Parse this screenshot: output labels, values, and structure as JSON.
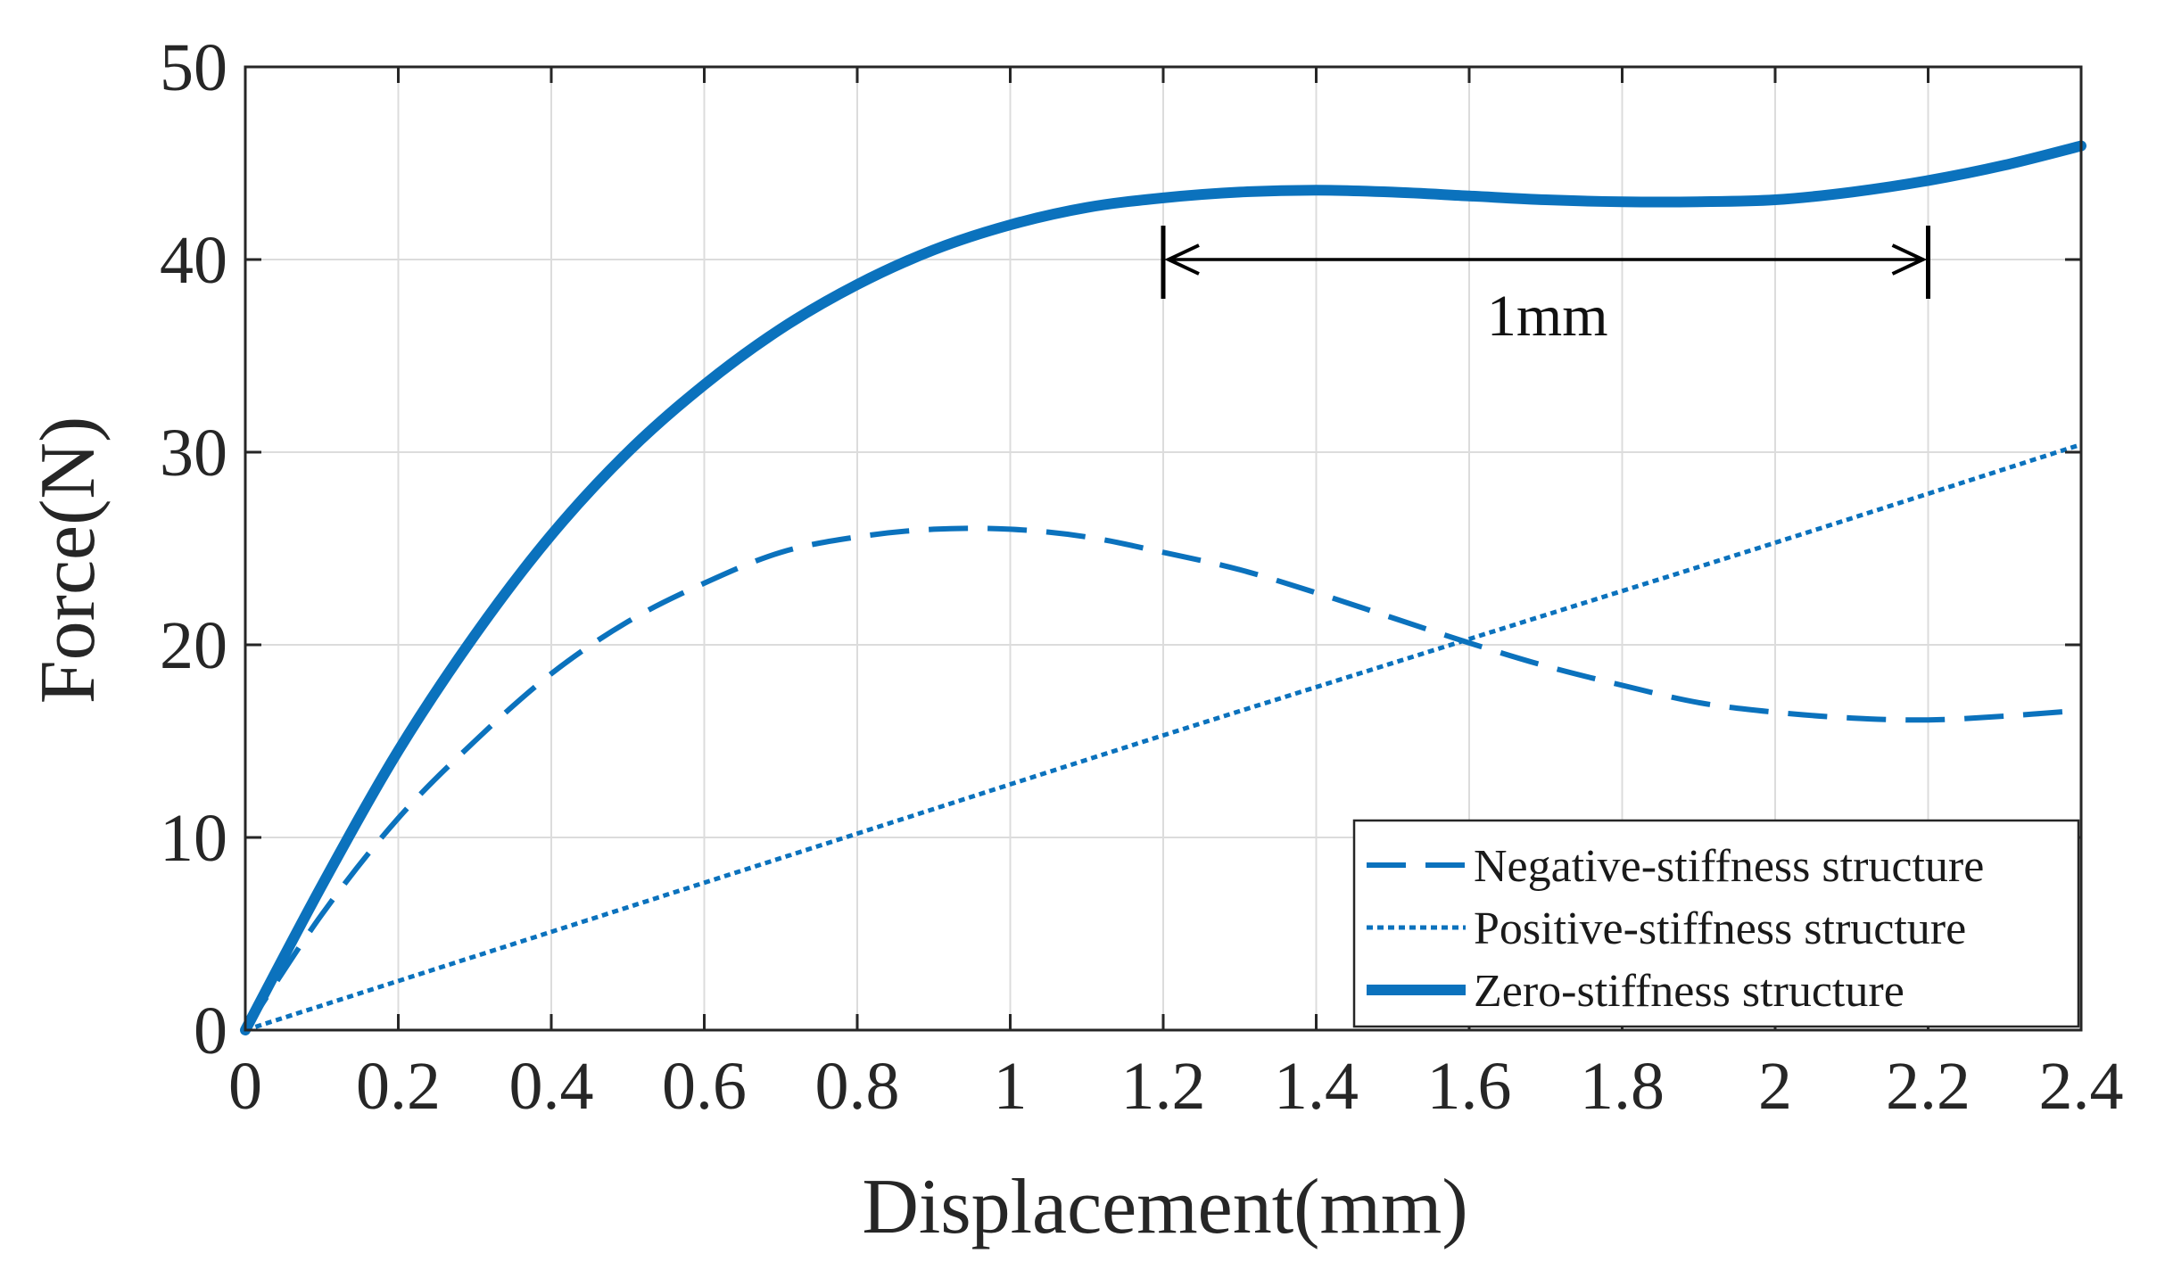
{
  "chart_data": {
    "type": "line",
    "title": "",
    "xlabel": "Displacement(mm)",
    "ylabel": "Force(N)",
    "xlim": [
      0,
      2.4
    ],
    "ylim": [
      0,
      50
    ],
    "grid": true,
    "xticks": [
      0,
      0.2,
      0.4,
      0.6,
      0.8,
      1,
      1.2,
      1.4,
      1.6,
      1.8,
      2,
      2.2,
      2.4
    ],
    "xtick_labels": [
      "0",
      "0.2",
      "0.4",
      "0.6",
      "0.8",
      "1",
      "1.2",
      "1.4",
      "1.6",
      "1.8",
      "2",
      "2.2",
      "2.4"
    ],
    "yticks": [
      0,
      10,
      20,
      30,
      40,
      50
    ],
    "ytick_labels": [
      "0",
      "10",
      "20",
      "30",
      "40",
      "50"
    ],
    "legend_position": "bottom-right",
    "colors": {
      "line": "#0b72bd",
      "axis": "#262626",
      "grid": "#dcdcdc",
      "annotation": "#000000"
    },
    "series": [
      {
        "name": "Negative-stiffness structure",
        "style": "dashed",
        "x": [
          0,
          0.1,
          0.2,
          0.3,
          0.4,
          0.5,
          0.6,
          0.7,
          0.8,
          0.9,
          1.0,
          1.1,
          1.2,
          1.3,
          1.4,
          1.5,
          1.6,
          1.7,
          1.8,
          1.9,
          2.0,
          2.1,
          2.2,
          2.3,
          2.4
        ],
        "y": [
          0,
          6,
          11,
          15,
          18.5,
          21.2,
          23.2,
          24.8,
          25.6,
          26.0,
          26.0,
          25.6,
          24.8,
          23.9,
          22.7,
          21.4,
          20.1,
          18.9,
          17.9,
          17.0,
          16.5,
          16.2,
          16.1,
          16.3,
          16.6
        ]
      },
      {
        "name": "Positive-stiffness structure",
        "style": "dotted",
        "x": [
          0,
          0.4,
          0.8,
          1.2,
          1.6,
          2.0,
          2.4
        ],
        "y": [
          0,
          5.1,
          10.2,
          15.3,
          20.3,
          25.3,
          30.4
        ]
      },
      {
        "name": "Zero-stiffness structure",
        "style": "solid",
        "x": [
          0,
          0.1,
          0.2,
          0.3,
          0.4,
          0.5,
          0.6,
          0.7,
          0.8,
          0.9,
          1.0,
          1.1,
          1.2,
          1.3,
          1.4,
          1.5,
          1.6,
          1.7,
          1.8,
          1.9,
          2.0,
          2.1,
          2.2,
          2.3,
          2.4
        ],
        "y": [
          0,
          7.5,
          14.5,
          20.5,
          25.7,
          30.0,
          33.5,
          36.4,
          38.7,
          40.5,
          41.8,
          42.7,
          43.2,
          43.5,
          43.6,
          43.5,
          43.3,
          43.1,
          43.0,
          43.0,
          43.1,
          43.5,
          44.1,
          44.9,
          45.9
        ]
      }
    ],
    "annotation": {
      "label": "1mm",
      "x_start": 1.2,
      "x_end": 2.2,
      "y": 40
    }
  }
}
